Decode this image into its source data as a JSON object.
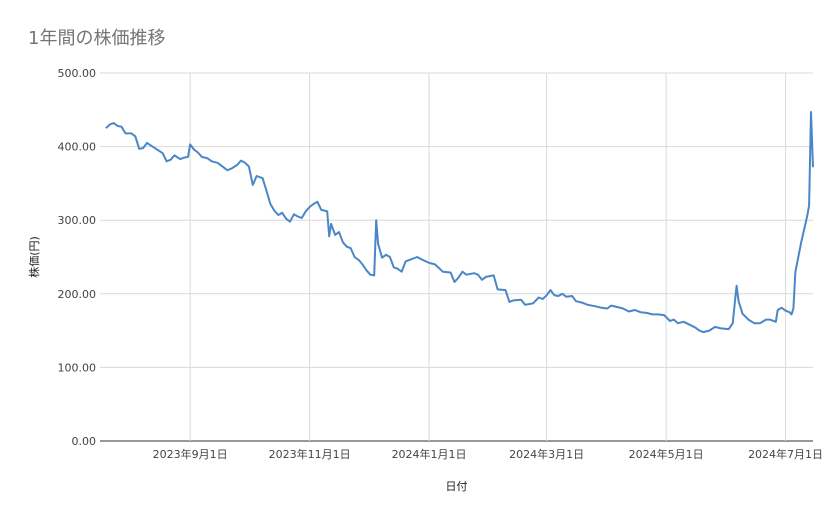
{
  "chart_data": {
    "type": "line",
    "title": "1年間の株価推移",
    "xlabel": "日付",
    "ylabel": "株価(円)",
    "ylim": [
      0,
      500
    ],
    "yticks": [
      "0.00",
      "100.00",
      "200.00",
      "300.00",
      "400.00",
      "500.00"
    ],
    "xticks": [
      "2023年9月1日",
      "2023年11月1日",
      "2024年1月1日",
      "2024年3月1日",
      "2024年5月1日",
      "2024年7月1日"
    ],
    "grid": true,
    "legend": "none",
    "line_color": "#4a86c8",
    "series": [
      {
        "values": [
          [
            "2023-07-20",
            425
          ],
          [
            "2023-07-22",
            430
          ],
          [
            "2023-07-24",
            432
          ],
          [
            "2023-07-26",
            428
          ],
          [
            "2023-07-28",
            427
          ],
          [
            "2023-07-30",
            418
          ],
          [
            "2023-08-02",
            418
          ],
          [
            "2023-08-04",
            414
          ],
          [
            "2023-08-06",
            397
          ],
          [
            "2023-08-08",
            398
          ],
          [
            "2023-08-10",
            405
          ],
          [
            "2023-08-14",
            398
          ],
          [
            "2023-08-18",
            391
          ],
          [
            "2023-08-20",
            380
          ],
          [
            "2023-08-22",
            382
          ],
          [
            "2023-08-24",
            388
          ],
          [
            "2023-08-27",
            383
          ],
          [
            "2023-08-29",
            385
          ],
          [
            "2023-08-31",
            386
          ],
          [
            "2023-09-01",
            403
          ],
          [
            "2023-09-03",
            396
          ],
          [
            "2023-09-05",
            392
          ],
          [
            "2023-09-07",
            386
          ],
          [
            "2023-09-10",
            384
          ],
          [
            "2023-09-12",
            380
          ],
          [
            "2023-09-15",
            378
          ],
          [
            "2023-09-18",
            372
          ],
          [
            "2023-09-20",
            368
          ],
          [
            "2023-09-22",
            370
          ],
          [
            "2023-09-25",
            375
          ],
          [
            "2023-09-27",
            381
          ],
          [
            "2023-09-29",
            378
          ],
          [
            "2023-10-01",
            373
          ],
          [
            "2023-10-03",
            348
          ],
          [
            "2023-10-05",
            360
          ],
          [
            "2023-10-08",
            357
          ],
          [
            "2023-10-10",
            340
          ],
          [
            "2023-10-12",
            322
          ],
          [
            "2023-10-14",
            313
          ],
          [
            "2023-10-16",
            307
          ],
          [
            "2023-10-18",
            310
          ],
          [
            "2023-10-20",
            302
          ],
          [
            "2023-10-22",
            298
          ],
          [
            "2023-10-24",
            308
          ],
          [
            "2023-10-26",
            305
          ],
          [
            "2023-10-28",
            303
          ],
          [
            "2023-10-30",
            312
          ],
          [
            "2023-11-01",
            318
          ],
          [
            "2023-11-03",
            322
          ],
          [
            "2023-11-05",
            325
          ],
          [
            "2023-11-07",
            314
          ],
          [
            "2023-11-10",
            312
          ],
          [
            "2023-11-11",
            278
          ],
          [
            "2023-11-12",
            295
          ],
          [
            "2023-11-14",
            280
          ],
          [
            "2023-11-16",
            284
          ],
          [
            "2023-11-18",
            270
          ],
          [
            "2023-11-20",
            264
          ],
          [
            "2023-11-22",
            262
          ],
          [
            "2023-11-24",
            250
          ],
          [
            "2023-11-26",
            246
          ],
          [
            "2023-11-28",
            240
          ],
          [
            "2023-11-30",
            232
          ],
          [
            "2023-12-02",
            226
          ],
          [
            "2023-12-04",
            225
          ],
          [
            "2023-12-05",
            300
          ],
          [
            "2023-12-06",
            268
          ],
          [
            "2023-12-08",
            249
          ],
          [
            "2023-12-10",
            253
          ],
          [
            "2023-12-12",
            250
          ],
          [
            "2023-12-14",
            236
          ],
          [
            "2023-12-16",
            234
          ],
          [
            "2023-12-18",
            230
          ],
          [
            "2023-12-20",
            244
          ],
          [
            "2023-12-22",
            246
          ],
          [
            "2023-12-26",
            250
          ],
          [
            "2023-12-28",
            247
          ],
          [
            "2024-01-01",
            242
          ],
          [
            "2024-01-04",
            240
          ],
          [
            "2024-01-06",
            235
          ],
          [
            "2024-01-08",
            230
          ],
          [
            "2024-01-12",
            229
          ],
          [
            "2024-01-14",
            216
          ],
          [
            "2024-01-16",
            222
          ],
          [
            "2024-01-18",
            230
          ],
          [
            "2024-01-20",
            226
          ],
          [
            "2024-01-24",
            228
          ],
          [
            "2024-01-26",
            226
          ],
          [
            "2024-01-28",
            219
          ],
          [
            "2024-01-30",
            223
          ],
          [
            "2024-02-03",
            225
          ],
          [
            "2024-02-05",
            206
          ],
          [
            "2024-02-09",
            205
          ],
          [
            "2024-02-11",
            189
          ],
          [
            "2024-02-13",
            191
          ],
          [
            "2024-02-17",
            192
          ],
          [
            "2024-02-19",
            185
          ],
          [
            "2024-02-23",
            187
          ],
          [
            "2024-02-26",
            195
          ],
          [
            "2024-02-28",
            193
          ],
          [
            "2024-03-01",
            198
          ],
          [
            "2024-03-03",
            205
          ],
          [
            "2024-03-05",
            198
          ],
          [
            "2024-03-07",
            197
          ],
          [
            "2024-03-09",
            200
          ],
          [
            "2024-03-11",
            196
          ],
          [
            "2024-03-14",
            197
          ],
          [
            "2024-03-16",
            190
          ],
          [
            "2024-03-19",
            188
          ],
          [
            "2024-03-22",
            185
          ],
          [
            "2024-03-26",
            183
          ],
          [
            "2024-03-29",
            181
          ],
          [
            "2024-04-01",
            180
          ],
          [
            "2024-04-03",
            184
          ],
          [
            "2024-04-06",
            182
          ],
          [
            "2024-04-09",
            180
          ],
          [
            "2024-04-12",
            176
          ],
          [
            "2024-04-15",
            178
          ],
          [
            "2024-04-18",
            175
          ],
          [
            "2024-04-21",
            174
          ],
          [
            "2024-04-24",
            172
          ],
          [
            "2024-04-27",
            172
          ],
          [
            "2024-04-30",
            171
          ],
          [
            "2024-05-03",
            163
          ],
          [
            "2024-05-05",
            165
          ],
          [
            "2024-05-07",
            160
          ],
          [
            "2024-05-10",
            162
          ],
          [
            "2024-05-13",
            158
          ],
          [
            "2024-05-16",
            154
          ],
          [
            "2024-05-18",
            150
          ],
          [
            "2024-05-20",
            148
          ],
          [
            "2024-05-23",
            150
          ],
          [
            "2024-05-26",
            155
          ],
          [
            "2024-05-29",
            153
          ],
          [
            "2024-06-02",
            152
          ],
          [
            "2024-06-04",
            160
          ],
          [
            "2024-06-06",
            211
          ],
          [
            "2024-06-07",
            190
          ],
          [
            "2024-06-09",
            173
          ],
          [
            "2024-06-12",
            165
          ],
          [
            "2024-06-15",
            160
          ],
          [
            "2024-06-18",
            160
          ],
          [
            "2024-06-21",
            165
          ],
          [
            "2024-06-23",
            165
          ],
          [
            "2024-06-26",
            162
          ],
          [
            "2024-06-27",
            178
          ],
          [
            "2024-06-29",
            181
          ],
          [
            "2024-07-01",
            177
          ],
          [
            "2024-07-03",
            175
          ],
          [
            "2024-07-04",
            172
          ],
          [
            "2024-07-05",
            180
          ],
          [
            "2024-07-06",
            230
          ],
          [
            "2024-07-09",
            270
          ],
          [
            "2024-07-12",
            305
          ],
          [
            "2024-07-13",
            320
          ],
          [
            "2024-07-14",
            447
          ],
          [
            "2024-07-15",
            372
          ]
        ]
      }
    ]
  }
}
